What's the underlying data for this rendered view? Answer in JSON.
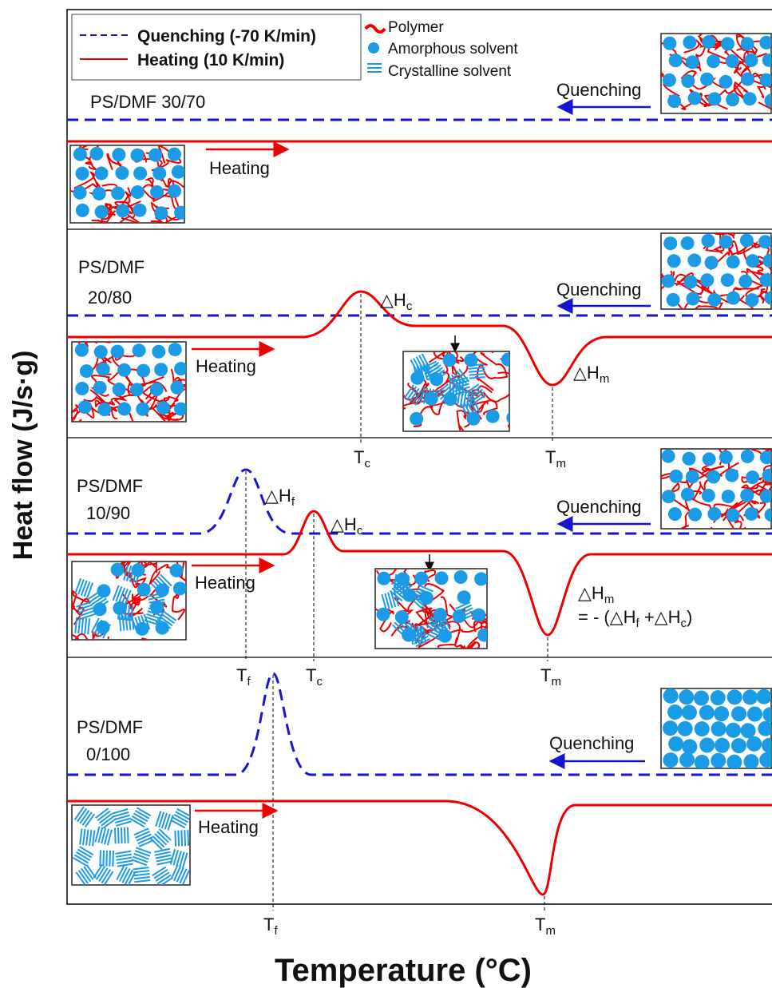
{
  "axes": {
    "y_label": "Heat flow (J/s·g)",
    "x_label": "Temperature (°C)"
  },
  "legend": {
    "quenching": "Quenching (-70 K/min)",
    "heating": "Heating (10 K/min)",
    "polymer": "Polymer",
    "amorphous": "Amorphous solvent",
    "crystalline": "Crystalline solvent"
  },
  "panels": [
    {
      "label": [
        "PS/DMF 30/70"
      ],
      "quenching": "Quenching",
      "heating": "Heating",
      "annotations": [],
      "temperatures": []
    },
    {
      "label": [
        "PS/DMF",
        "20/80"
      ],
      "quenching": "Quenching",
      "heating": "Heating",
      "annotations": [
        {
          "main": "△H",
          "sub": "c"
        },
        {
          "main": "△H",
          "sub": "m"
        }
      ],
      "temperatures": [
        {
          "main": "T",
          "sub": "c"
        },
        {
          "main": "T",
          "sub": "m"
        }
      ]
    },
    {
      "label": [
        "PS/DMF",
        "10/90"
      ],
      "quenching": "Quenching",
      "heating": "Heating",
      "annotations": [
        {
          "main": "△H",
          "sub": "f"
        },
        {
          "main": "△H",
          "sub": "c"
        },
        {
          "main": "△H",
          "sub": "m"
        }
      ],
      "equation": [
        "= - (△H",
        "f",
        " +△H",
        "c",
        ")"
      ],
      "temperatures": [
        {
          "main": "T",
          "sub": "f"
        },
        {
          "main": "T",
          "sub": "c"
        },
        {
          "main": "T",
          "sub": "m"
        }
      ]
    },
    {
      "label": [
        "PS/DMF",
        "0/100"
      ],
      "quenching": "Quenching",
      "heating": "Heating",
      "annotations": [],
      "temperatures": [
        {
          "main": "T",
          "sub": "f"
        },
        {
          "main": "T",
          "sub": "m"
        }
      ]
    }
  ]
}
